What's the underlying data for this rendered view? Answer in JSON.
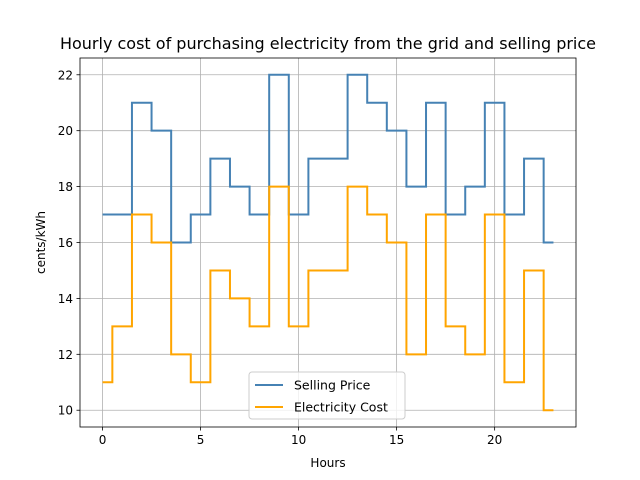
{
  "chart_data": {
    "type": "line",
    "title": "Hourly cost of purchasing electricity from the grid and selling price",
    "xlabel": "Hours",
    "ylabel": "cents/kWh",
    "xlim": [
      -1.15,
      24.15
    ],
    "ylim": [
      9.4,
      22.6
    ],
    "xticks": [
      0,
      5,
      10,
      15,
      20
    ],
    "yticks": [
      10,
      12,
      14,
      16,
      18,
      20,
      22
    ],
    "grid": true,
    "legend_position": "lower center",
    "step": "mid",
    "x": [
      0,
      1,
      2,
      3,
      4,
      5,
      6,
      7,
      8,
      9,
      10,
      11,
      12,
      13,
      14,
      15,
      16,
      17,
      18,
      19,
      20,
      21,
      22,
      23
    ],
    "series": [
      {
        "name": "Selling Price",
        "color": "#4682b4",
        "values": [
          17,
          17,
          21,
          20,
          16,
          17,
          19,
          18,
          17,
          22,
          17,
          19,
          19,
          22,
          21,
          20,
          18,
          21,
          17,
          18,
          21,
          17,
          19,
          16
        ]
      },
      {
        "name": "Electricity Cost",
        "color": "#ffa500",
        "values": [
          11,
          13,
          17,
          16,
          12,
          11,
          15,
          14,
          13,
          18,
          13,
          15,
          15,
          18,
          17,
          16,
          12,
          17,
          13,
          12,
          17,
          11,
          15,
          10
        ]
      }
    ]
  }
}
